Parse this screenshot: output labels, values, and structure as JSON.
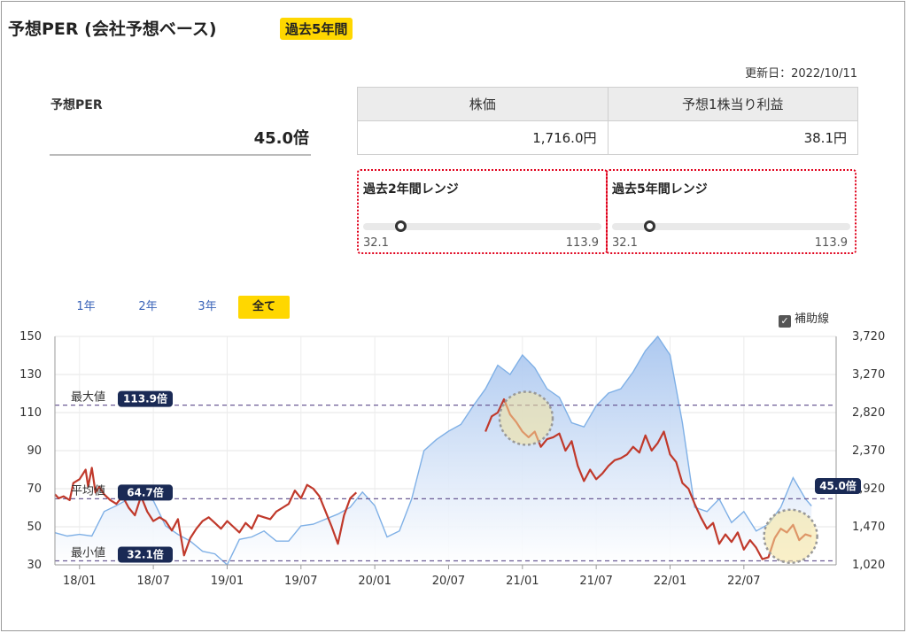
{
  "header": {
    "title": "予想PER (会社予想ベース)",
    "badge": "過去5年間",
    "updated": "更新日：2022/10/11"
  },
  "summary": {
    "per_label": "予想PER",
    "per_value": "45.0倍"
  },
  "stock_table": {
    "headers": [
      "株価",
      "予想1株当り利益"
    ],
    "values": [
      "1,716.0円",
      "38.1円"
    ]
  },
  "ranges": [
    {
      "label": "過去2年間レンジ",
      "min": "32.1",
      "max": "113.9",
      "current": 45.0
    },
    {
      "label": "過去5年間レンジ",
      "min": "32.1",
      "max": "113.9",
      "current": 45.0
    }
  ],
  "tabs": [
    {
      "label": "1年",
      "active": false
    },
    {
      "label": "2年",
      "active": false
    },
    {
      "label": "3年",
      "active": false
    },
    {
      "label": "全て",
      "active": true
    }
  ],
  "aux_lines_label": "補助線",
  "colors": {
    "per_line": "#c0392b",
    "price_line": "#7fb0e6",
    "accent": "#ffd700",
    "pill": "#1a2a55"
  },
  "chart_data": {
    "type": "line",
    "x_ticks": [
      "18/01",
      "18/07",
      "19/01",
      "19/07",
      "20/01",
      "20/07",
      "21/01",
      "21/07",
      "22/01",
      "22/07"
    ],
    "y_left_ticks": [
      "150",
      "130",
      "110",
      "90",
      "70",
      "50",
      "30"
    ],
    "y_left_range": [
      30,
      150
    ],
    "y_right_ticks": [
      "3,720",
      "3,270",
      "2,820",
      "2,370",
      "1,920",
      "1,470",
      "1,020"
    ],
    "y_right_range": [
      1020,
      3720
    ],
    "reference_lines": [
      {
        "label": "最大値",
        "value": 113.9,
        "text": "113.9倍"
      },
      {
        "label": "平均値",
        "value": 64.7,
        "text": "64.7倍"
      },
      {
        "label": "最小値",
        "value": 32.1,
        "text": "32.1倍"
      }
    ],
    "current": {
      "value": 45.0,
      "text": "45.0倍"
    },
    "series": [
      {
        "axis": "left",
        "t": [
          0,
          0.3,
          0.7,
          1.2,
          1.5,
          2,
          2.5,
          2.7,
          3,
          3.3,
          3.6,
          4,
          4.5,
          5,
          5.5,
          6,
          6.5,
          7,
          7.5,
          8,
          8.5,
          9,
          9.5,
          10,
          10.5,
          11,
          11.5,
          12,
          12.5,
          13,
          13.5,
          14,
          14.5,
          15,
          15.5,
          16,
          16.5,
          17,
          17.5,
          18,
          18.5,
          19,
          19.5,
          20,
          20.5,
          21,
          21.5,
          22,
          22.5,
          23,
          23.5,
          24,
          24.5,
          25,
          25.5,
          26,
          26.5,
          27,
          27.5,
          28,
          28.5,
          29
        ],
        "values": [
          67,
          65,
          66,
          64,
          73,
          75,
          80,
          71,
          81,
          68,
          71,
          67,
          64,
          62,
          66,
          60,
          56,
          66,
          58,
          53,
          55,
          53,
          48,
          54,
          35,
          44,
          49,
          53,
          55,
          52,
          49,
          53,
          50,
          47,
          52,
          49,
          56,
          55,
          54,
          58,
          60,
          62,
          69,
          65,
          72,
          70,
          66,
          58,
          50,
          41,
          56,
          65,
          68,
          null,
          null,
          null,
          null,
          null,
          null,
          null,
          null,
          null
        ]
      },
      {
        "axis": "left",
        "t": [
          35,
          35.5,
          36,
          36.5,
          37,
          37.5,
          38,
          38.5,
          39,
          39.5,
          40,
          40.5,
          41,
          41.5,
          42,
          42.5,
          43,
          43.5,
          44,
          44.5,
          45,
          45.5,
          46,
          46.5,
          47,
          47.5,
          48,
          48.5,
          49,
          49.5,
          50,
          50.5,
          51,
          51.5,
          52,
          52.5,
          53,
          53.5,
          54,
          54.5,
          55,
          55.5,
          56,
          56.5,
          57,
          57.5,
          58,
          58.5
        ],
        "values": [
          100,
          108,
          110,
          117,
          109,
          105,
          100,
          97,
          100,
          92,
          96,
          97,
          99,
          90,
          95,
          82,
          74,
          80,
          75,
          78,
          82,
          85,
          86,
          88,
          92,
          89,
          98,
          90,
          94,
          100,
          88,
          84,
          73,
          70,
          62,
          55,
          49,
          52,
          41,
          46,
          42,
          47,
          38,
          43,
          39,
          33,
          34,
          44
        ]
      },
      {
        "axis": "left",
        "t": [
          58.5,
          59,
          59.5,
          60,
          60.5,
          61,
          61.5
        ],
        "values": [
          44,
          49,
          47,
          51,
          43,
          46,
          45
        ]
      }
    ],
    "price_series": {
      "axis": "right",
      "t": [
        0,
        1,
        2,
        3,
        4,
        5,
        6,
        7,
        8,
        9,
        10,
        11,
        12,
        13,
        14,
        15,
        16,
        17,
        18,
        19,
        20,
        21,
        22,
        23,
        24,
        25,
        26,
        27,
        28,
        29,
        30,
        31,
        32,
        33,
        34,
        35,
        36,
        37,
        38,
        39,
        40,
        41,
        42,
        43,
        44,
        45,
        46,
        47,
        48,
        49,
        50,
        51,
        52,
        53,
        54,
        55,
        56,
        57,
        58,
        59,
        60,
        61,
        61.5
      ],
      "values": [
        1400,
        1360,
        1380,
        1360,
        1650,
        1720,
        1800,
        1820,
        1780,
        1480,
        1380,
        1300,
        1180,
        1150,
        1020,
        1320,
        1350,
        1420,
        1300,
        1300,
        1480,
        1500,
        1560,
        1620,
        1700,
        1880,
        1720,
        1350,
        1420,
        1800,
        2370,
        2500,
        2600,
        2680,
        2900,
        3100,
        3380,
        3270,
        3500,
        3350,
        3100,
        3000,
        2700,
        2650,
        2900,
        3050,
        3100,
        3300,
        3550,
        3720,
        3500,
        2700,
        1700,
        1650,
        1800,
        1520,
        1650,
        1420,
        1500,
        1700,
        2050,
        1800,
        1716
      ]
    }
  }
}
